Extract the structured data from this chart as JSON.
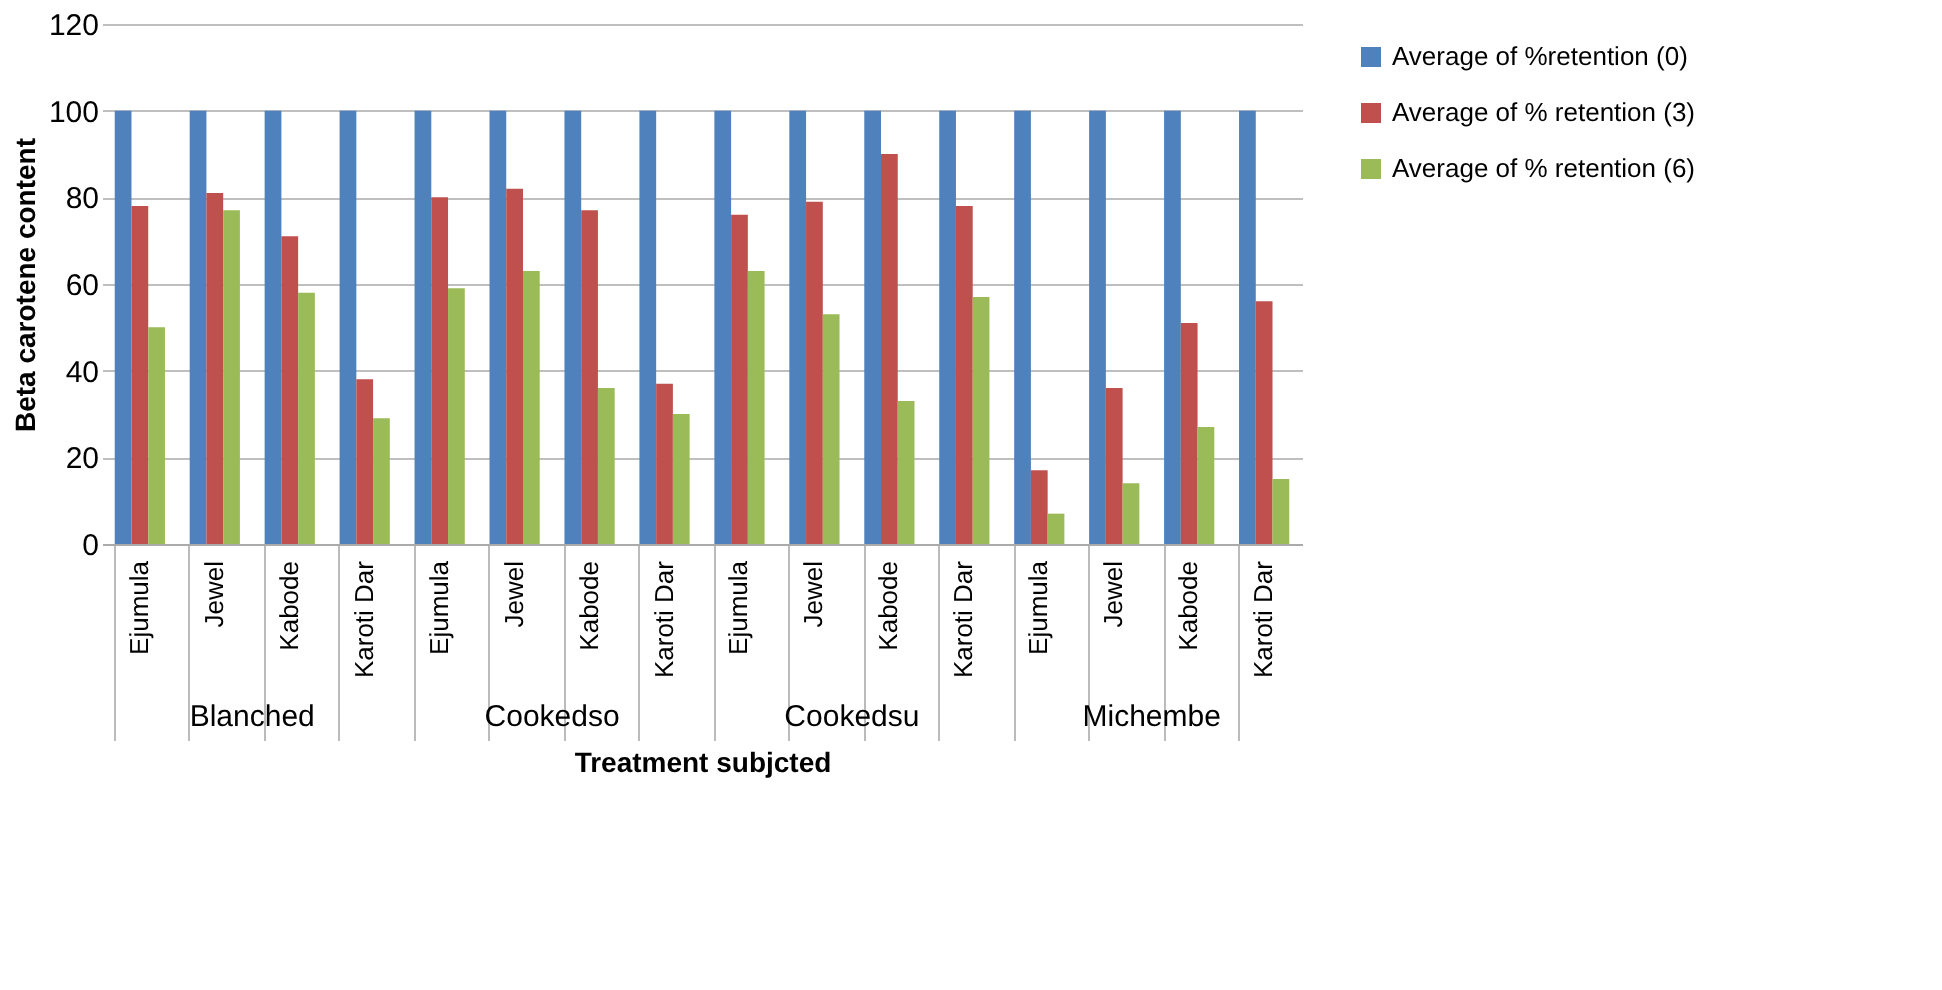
{
  "chart_data": {
    "type": "bar",
    "xlabel": "Treatment subjcted",
    "ylabel": "Beta carotene content",
    "categories": [
      "Ejumula",
      "Jewel",
      "Kabode",
      "Karoti Dar",
      "Ejumula",
      "Jewel",
      "Kabode",
      "Karoti Dar",
      "Ejumula",
      "Jewel",
      "Kabode",
      "Karoti Dar",
      "Ejumula",
      "Jewel",
      "Kabode",
      "Karoti Dar"
    ],
    "series": [
      {
        "name": "Average of %retention (0)",
        "color": "#4f81bd",
        "values": [
          100,
          100,
          100,
          100,
          100,
          100,
          100,
          100,
          100,
          100,
          100,
          100,
          100,
          100,
          100,
          100
        ]
      },
      {
        "name": "Average of % retention (3)",
        "color": "#c0504d",
        "values": [
          78,
          81,
          71,
          38,
          80,
          82,
          77,
          37,
          76,
          79,
          90,
          78,
          17,
          36,
          51,
          56
        ]
      },
      {
        "name": "Average of % retention (6)",
        "color": "#9bbb59",
        "values": [
          50,
          77,
          58,
          29,
          59,
          63,
          36,
          30,
          63,
          53,
          33,
          57,
          7,
          14,
          27,
          15
        ]
      }
    ],
    "annotations": [
      "Blanched",
      "Cookedso",
      "Cookedsu",
      "Michembe"
    ],
    "ylim": [
      0,
      120
    ],
    "yticks": [
      0,
      20,
      40,
      60,
      80,
      100,
      120
    ],
    "grid": "y",
    "legend": "right"
  }
}
